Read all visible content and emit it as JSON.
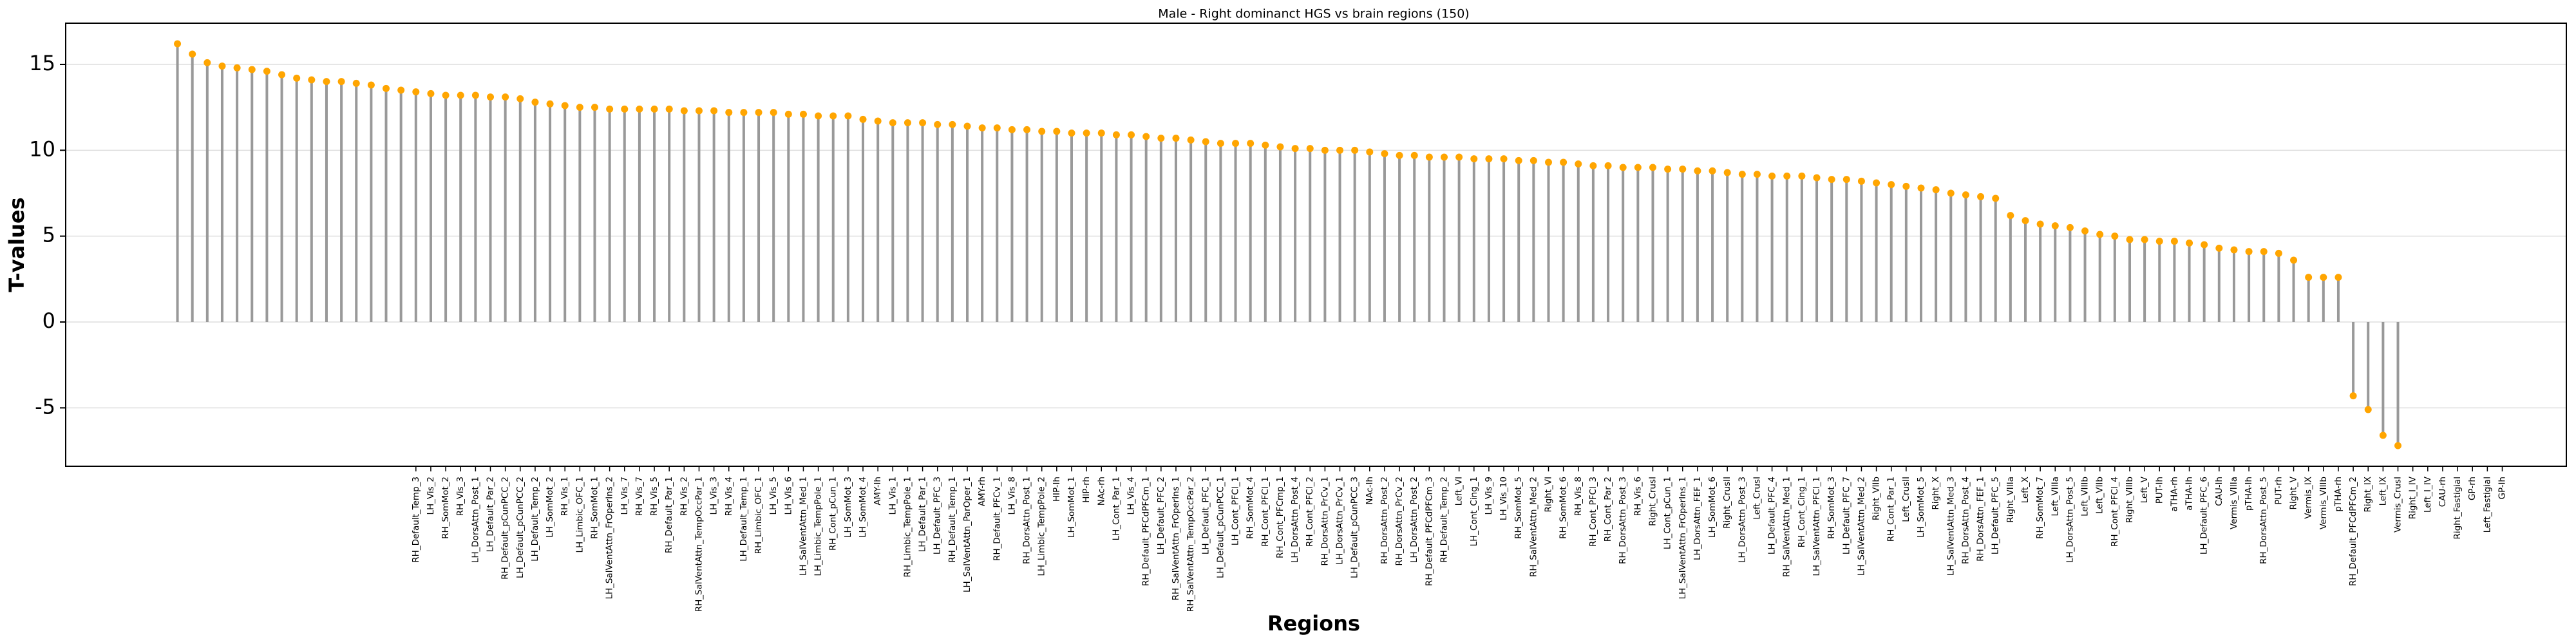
{
  "chart_data": {
    "type": "lollipop",
    "title": "Male - Right dominanct HGS vs brain regions (150)",
    "xlabel": "Regions",
    "ylabel": "T-values",
    "stem_color": "#999999",
    "marker_color": "#ffa500",
    "grid": true,
    "ylim": [
      -8.4,
      17.4
    ],
    "yticks": [
      -5,
      0,
      5,
      10,
      15
    ],
    "categories": [
      null,
      null,
      null,
      null,
      null,
      null,
      null,
      null,
      null,
      null,
      null,
      null,
      null,
      null,
      null,
      null,
      "RH_Default_Temp_3",
      "LH_Vis_2",
      "RH_SomMot_2",
      "RH_Vis_3",
      "LH_DorsAttn_Post_1",
      "LH_Default_Par_2",
      "RH_Default_pCunPCC_2",
      "LH_Default_pCunPCC_2",
      "LH_Default_Temp_2",
      "LH_SomMot_2",
      "RH_Vis_1",
      "LH_Limbic_OFC_1",
      "RH_SomMot_1",
      "LH_SalVentAttn_FrOperIns_2",
      "LH_Vis_7",
      "RH_Vis_7",
      "RH_Vis_5",
      "RH_Default_Par_1",
      "RH_Vis_2",
      "RH_SalVentAttn_TempOccPar_1",
      "LH_Vis_3",
      "RH_Vis_4",
      "LH_Default_Temp_1",
      "RH_Limbic_OFC_1",
      "LH_Vis_5",
      "LH_Vis_6",
      "LH_SalVentAttn_Med_1",
      "LH_Limbic_TempPole_1",
      "RH_Cont_pCun_1",
      "LH_SomMot_3",
      "LH_SomMot_4",
      "AMY-lh",
      "LH_Vis_1",
      "RH_Limbic_TempPole_1",
      "LH_Default_Par_1",
      "LH_Default_PFC_3",
      "RH_Default_Temp_1",
      "LH_SalVentAttn_ParOper_1",
      "AMY-rh",
      "RH_Default_PFCv_1",
      "LH_Vis_8",
      "RH_DorsAttn_Post_1",
      "LH_Limbic_TempPole_2",
      "HIP-lh",
      "LH_SomMot_1",
      "HIP-rh",
      "NAc-rh",
      "LH_Cont_Par_1",
      "LH_Vis_4",
      "RH_Default_PFCdPFCm_1",
      "LH_Default_PFC_2",
      "RH_SalVentAttn_FrOperIns_1",
      "RH_SalVentAttn_TempOccPar_2",
      "LH_Default_PFC_1",
      "LH_Default_pCunPCC_1",
      "LH_Cont_PFCl_1",
      "RH_SomMot_4",
      "RH_Cont_PFCl_1",
      "RH_Cont_PFCmp_1",
      "LH_DorsAttn_Post_4",
      "RH_Cont_PFCl_2",
      "RH_DorsAttn_PrCv_1",
      "LH_DorsAttn_PrCv_1",
      "LH_Default_pCunPCC_3",
      "NAc-lh",
      "RH_DorsAttn_Post_2",
      "RH_DorsAttn_PrCv_2",
      "LH_DorsAttn_Post_2",
      "RH_Default_PFCdPFCm_3",
      "RH_Default_Temp_2",
      "Left_VI",
      "LH_Cont_Cing_1",
      "LH_Vis_9",
      "LH_Vis_10",
      "RH_SomMot_5",
      "RH_SalVentAttn_Med_2",
      "Right_VI",
      "RH_SomMot_6",
      "RH_Vis_8",
      "RH_Cont_PFCl_3",
      "RH_Cont_Par_2",
      "RH_DorsAttn_Post_3",
      "RH_Vis_6",
      "Right_CrusI",
      "LH_Cont_pCun_1",
      "LH_SalVentAttn_FrOperIns_1",
      "LH_DorsAttn_FEF_1",
      "LH_SomMot_6",
      "Right_CrusII",
      "LH_DorsAttn_Post_3",
      "Left_CrusI",
      "LH_Default_PFC_4",
      "RH_SalVentAttn_Med_1",
      "RH_Cont_Cing_1",
      "LH_SalVentAttn_PFCl_1",
      "RH_SomMot_3",
      "LH_Default_PFC_7",
      "LH_SalVentAttn_Med_2",
      "Right_VIIb",
      "RH_Cont_Par_1",
      "Left_CrusII",
      "LH_SomMot_5",
      "Right_X",
      "LH_SalVentAttn_Med_3",
      "RH_DorsAttn_Post_4",
      "RH_DorsAttn_FEF_1",
      "LH_Default_PFC_5",
      "Right_VIIIa",
      "Left_X",
      "RH_SomMot_7",
      "Left_VIIIa",
      "LH_DorsAttn_Post_5",
      "Left_VIIIb",
      "Left_VIIb",
      "RH_Cont_PFCl_4",
      "Right_VIIIb",
      "Left_V",
      "PUT-lh",
      "aTHA-rh",
      "aTHA-lh",
      "LH_Default_PFC_6",
      "CAU-lh",
      "Vermis_VIIIa",
      "pTHA-lh",
      "RH_DorsAttn_Post_5",
      "PUT-rh",
      "Right_V",
      "Vermis_IX",
      "Vermis_VIIIb",
      "pTHA-rh",
      "RH_Default_PFCdPFCm_2",
      "Right_IX",
      "Left_IX",
      "Vermis_CrusI",
      "Right_I_IV",
      "Left_I_IV",
      "CAU-rh",
      "Right_Fastigial",
      "GP-rh",
      "Left_Fastigial",
      "GP-lh"
    ],
    "values": [
      16.2,
      15.6,
      15.1,
      14.9,
      14.8,
      14.7,
      14.6,
      14.4,
      14.2,
      14.1,
      14.0,
      14.0,
      13.9,
      13.8,
      13.6,
      13.5,
      13.4,
      13.3,
      13.2,
      13.2,
      13.2,
      13.1,
      13.1,
      13.0,
      12.8,
      12.7,
      12.6,
      12.5,
      12.5,
      12.4,
      12.4,
      12.4,
      12.4,
      12.4,
      12.3,
      12.3,
      12.3,
      12.2,
      12.2,
      12.2,
      12.2,
      12.1,
      12.1,
      12.0,
      12.0,
      12.0,
      11.8,
      11.7,
      11.6,
      11.6,
      11.6,
      11.5,
      11.5,
      11.4,
      11.3,
      11.3,
      11.2,
      11.2,
      11.1,
      11.1,
      11.0,
      11.0,
      11.0,
      10.9,
      10.9,
      10.8,
      10.7,
      10.7,
      10.6,
      10.5,
      10.4,
      10.4,
      10.4,
      10.3,
      10.2,
      10.1,
      10.1,
      10.0,
      10.0,
      10.0,
      9.9,
      9.8,
      9.7,
      9.7,
      9.6,
      9.6,
      9.6,
      9.5,
      9.5,
      9.5,
      9.4,
      9.4,
      9.3,
      9.3,
      9.2,
      9.1,
      9.1,
      9.0,
      9.0,
      9.0,
      8.9,
      8.9,
      8.8,
      8.8,
      8.7,
      8.6,
      8.6,
      8.5,
      8.5,
      8.5,
      8.4,
      8.3,
      8.3,
      8.2,
      8.1,
      8.0,
      7.9,
      7.8,
      7.7,
      7.5,
      7.4,
      7.3,
      7.2,
      6.2,
      5.9,
      5.7,
      5.6,
      5.5,
      5.3,
      5.1,
      5.0,
      4.8,
      4.8,
      4.7,
      4.7,
      4.6,
      4.5,
      4.3,
      4.2,
      4.1,
      4.1,
      4.0,
      3.6,
      2.6,
      2.6,
      2.6,
      -4.3,
      -5.1,
      -6.6,
      -7.2,
      null,
      null,
      null,
      null,
      null,
      null,
      null
    ]
  }
}
